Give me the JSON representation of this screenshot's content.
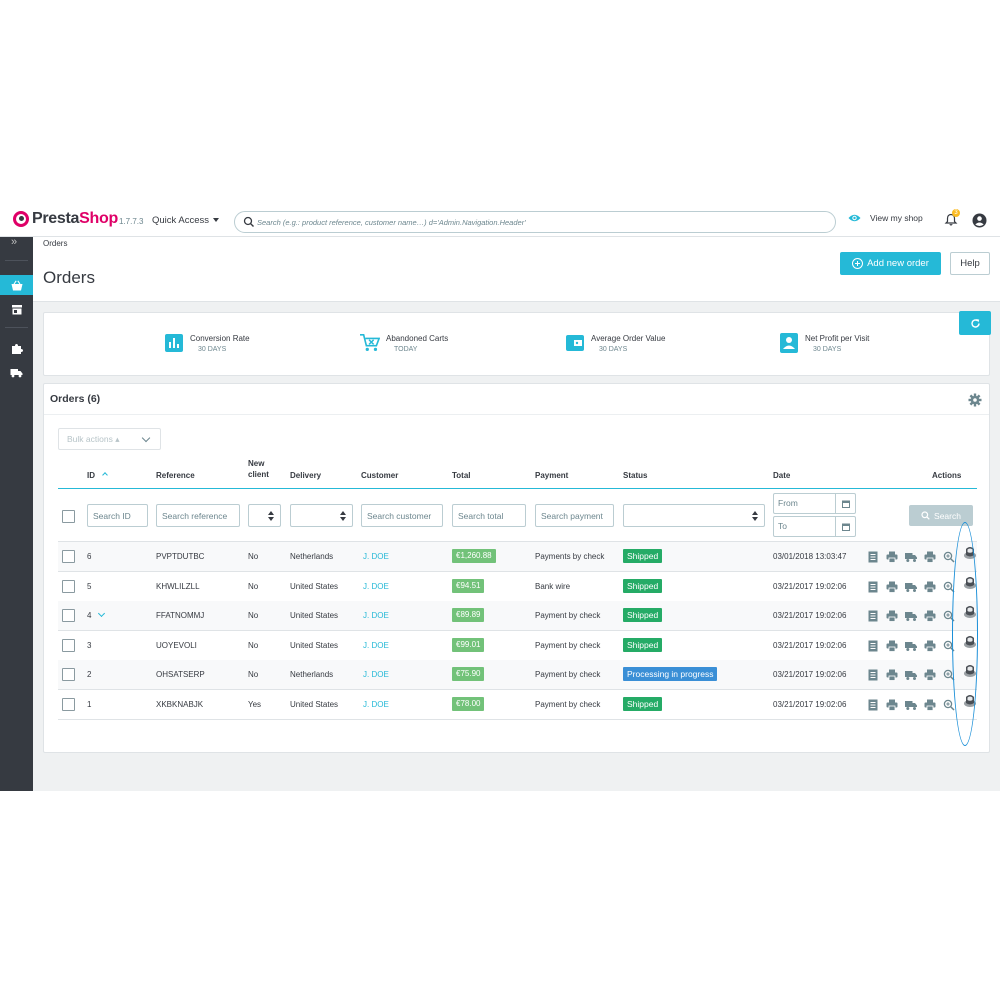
{
  "header": {
    "brand_part1": "Presta",
    "brand_part2": "Shop",
    "version": "1.7.7.3",
    "quick_access": "Quick Access",
    "search_placeholder": "Search (e.g.: product reference, customer name…) d='Admin.Navigation.Header'",
    "view_shop": "View my shop",
    "notifications_count": "3"
  },
  "sidebar": {
    "items": [
      {
        "icon": "basket-icon",
        "active": true
      },
      {
        "icon": "store-icon",
        "active": false
      },
      {
        "icon": "puzzle-icon",
        "active": false
      },
      {
        "icon": "truck-icon",
        "active": false
      }
    ]
  },
  "page": {
    "breadcrumb": "Orders",
    "title": "Orders",
    "add_button": "Add new order",
    "help_button": "Help"
  },
  "kpis": [
    {
      "title": "Conversion Rate",
      "subtitle": "30 DAYS",
      "icon": "bar-chart-icon"
    },
    {
      "title": "Abandoned Carts",
      "subtitle": "TODAY",
      "icon": "cart-remove-icon"
    },
    {
      "title": "Average Order Value",
      "subtitle": "30 DAYS",
      "icon": "wallet-icon"
    },
    {
      "title": "Net Profit per Visit",
      "subtitle": "30 DAYS",
      "icon": "account-box-icon"
    }
  ],
  "orders": {
    "title": "Orders (6)",
    "bulk_actions": "Bulk actions ▴",
    "columns": {
      "id": "ID",
      "reference": "Reference",
      "new_client_1": "New",
      "new_client_2": "client",
      "delivery": "Delivery",
      "customer": "Customer",
      "total": "Total",
      "payment": "Payment",
      "status": "Status",
      "date": "Date",
      "actions": "Actions"
    },
    "filters": {
      "id": "Search ID",
      "reference": "Search reference",
      "customer": "Search customer",
      "total": "Search total",
      "payment": "Search payment",
      "date_from": "From",
      "date_to": "To",
      "search_button": "Search"
    },
    "rows": [
      {
        "id": "6",
        "reference": "PVPTDUTBC",
        "new_client": "No",
        "delivery": "Netherlands",
        "customer": "J. DOE",
        "total": "€1,260.88",
        "payment": "Payments by check",
        "status": "Shipped",
        "status_color": "#25ab66",
        "date": "03/01/2018 13:03:47"
      },
      {
        "id": "5",
        "reference": "KHWLILZLL",
        "new_client": "No",
        "delivery": "United States",
        "customer": "J. DOE",
        "total": "€94.51",
        "payment": "Bank wire",
        "status": "Shipped",
        "status_color": "#25ab66",
        "date": "03/21/2017 19:02:06"
      },
      {
        "id": "4",
        "reference": "FFATNOMMJ",
        "new_client": "No",
        "delivery": "United States",
        "customer": "J. DOE",
        "total": "€89.89",
        "payment": "Payment by check",
        "status": "Shipped",
        "status_color": "#25ab66",
        "date": "03/21/2017 19:02:06"
      },
      {
        "id": "3",
        "reference": "UOYEVOLI",
        "new_client": "No",
        "delivery": "United States",
        "customer": "J. DOE",
        "total": "€99.01",
        "payment": "Payment by check",
        "status": "Shipped",
        "status_color": "#25ab66",
        "date": "03/21/2017 19:02:06"
      },
      {
        "id": "2",
        "reference": "OHSATSERP",
        "new_client": "No",
        "delivery": "Netherlands",
        "customer": "J. DOE",
        "total": "€75.90",
        "payment": "Payment by check",
        "status": "Processing in progress",
        "status_color": "#3a8fd6",
        "date": "03/21/2017 19:02:06"
      },
      {
        "id": "1",
        "reference": "XKBKNABJK",
        "new_client": "Yes",
        "delivery": "United States",
        "customer": "J. DOE",
        "total": "€78.00",
        "payment": "Payment by check",
        "status": "Shipped",
        "status_color": "#25ab66",
        "date": "03/21/2017 19:02:06"
      }
    ]
  },
  "colors": {
    "primary": "#25b9d7",
    "sidebar": "#363a41",
    "shipped": "#25ab66",
    "processing": "#3a8fd6",
    "total_badge": "#72c279",
    "highlight_oval": "#1a8fd8"
  }
}
